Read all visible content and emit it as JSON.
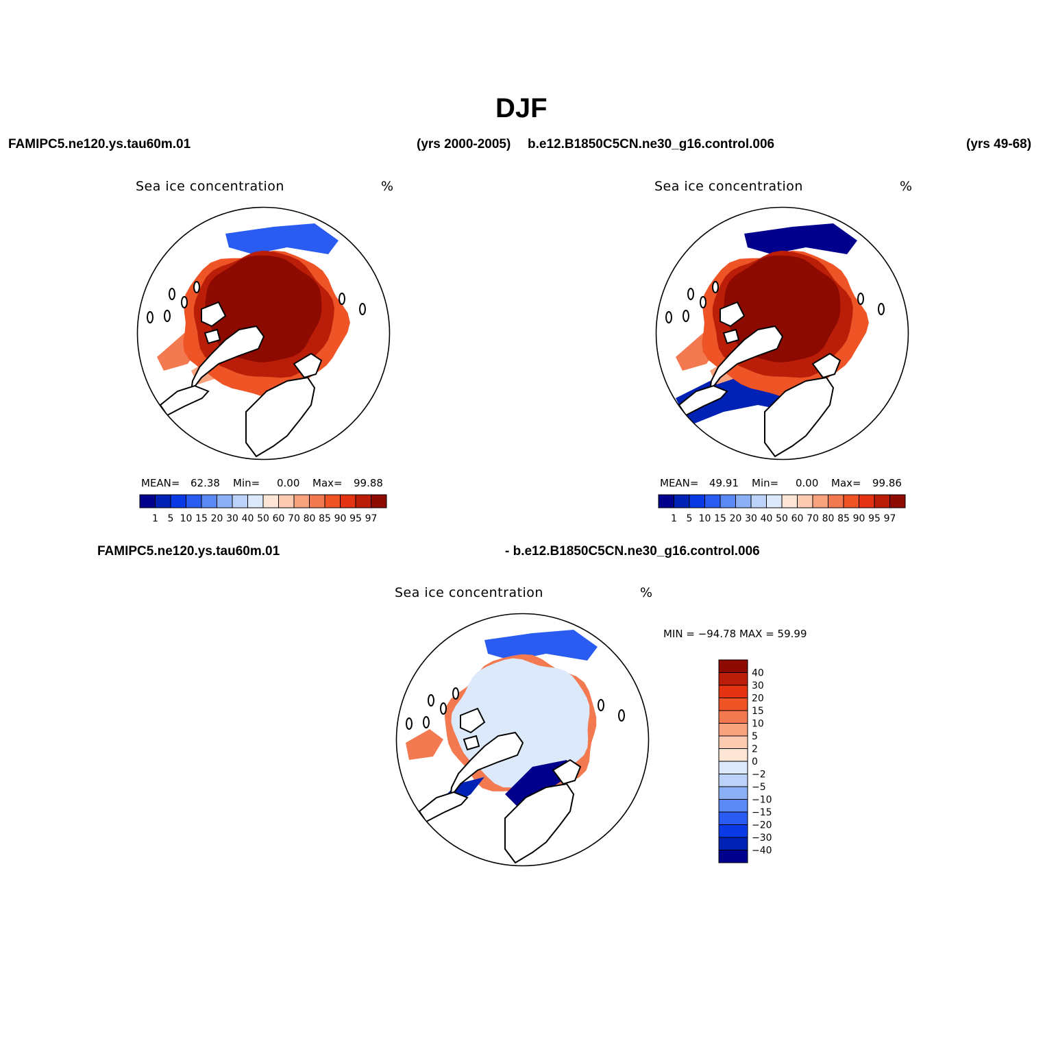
{
  "title": "DJF",
  "header": {
    "case1": "FAMIPC5.ne120.ys.tau60m.01",
    "years1": "(yrs 2000-2005)",
    "case2": "b.e12.B1850C5CN.ne30_g16.control.006",
    "years2": "(yrs 49-68)"
  },
  "diff_header": {
    "left": "FAMIPC5.ne120.ys.tau60m.01",
    "right": "- b.e12.B1850C5CN.ne30_g16.control.006"
  },
  "colors": {
    "abs_scale": [
      "#00008c",
      "#0022b4",
      "#0a3ae6",
      "#2a5cf2",
      "#5a88f5",
      "#8cb0f5",
      "#bcd2f8",
      "#dce9fa",
      "#fde6d6",
      "#fccbb2",
      "#f8a27e",
      "#f37a50",
      "#ee5426",
      "#e43312",
      "#bb1e08",
      "#8c0a00"
    ],
    "diff_scale": [
      "#00008c",
      "#0022b4",
      "#0a3ae6",
      "#2a5cf2",
      "#5a88f5",
      "#8cb0f5",
      "#bcd2f8",
      "#dce9fa",
      "#fde6d6",
      "#fccbb2",
      "#f8a27e",
      "#f37a50",
      "#ee5426",
      "#e43312",
      "#bb1e08",
      "#8c0a00"
    ],
    "land": "#ffffff",
    "coast": "#000000"
  },
  "chart_data": [
    {
      "type": "heatmap",
      "projection": "north-polar-stereographic",
      "label": "Sea ice concentration",
      "units": "%",
      "stats": {
        "mean_label": "MEAN=",
        "mean": "62.38",
        "min_label": "Min=",
        "min": "0.00",
        "max_label": "Max=",
        "max": "99.88"
      },
      "levels": [
        "1",
        "5",
        "10",
        "15",
        "20",
        "30",
        "40",
        "50",
        "60",
        "70",
        "80",
        "85",
        "90",
        "95",
        "97"
      ]
    },
    {
      "type": "heatmap",
      "projection": "north-polar-stereographic",
      "label": "Sea ice concentration",
      "units": "%",
      "stats": {
        "mean_label": "MEAN=",
        "mean": "49.91",
        "min_label": "Min=",
        "min": "0.00",
        "max_label": "Max=",
        "max": "99.86"
      },
      "levels": [
        "1",
        "5",
        "10",
        "15",
        "20",
        "30",
        "40",
        "50",
        "60",
        "70",
        "80",
        "85",
        "90",
        "95",
        "97"
      ]
    },
    {
      "type": "heatmap",
      "projection": "north-polar-stereographic",
      "label": "Sea ice concentration",
      "units": "%",
      "stats_text": "MIN = −94.78 MAX =   59.99",
      "levels": [
        "40",
        "30",
        "20",
        "15",
        "10",
        "5",
        "2",
        "0",
        "−2",
        "−5",
        "−10",
        "−15",
        "−20",
        "−30",
        "−40"
      ]
    }
  ]
}
